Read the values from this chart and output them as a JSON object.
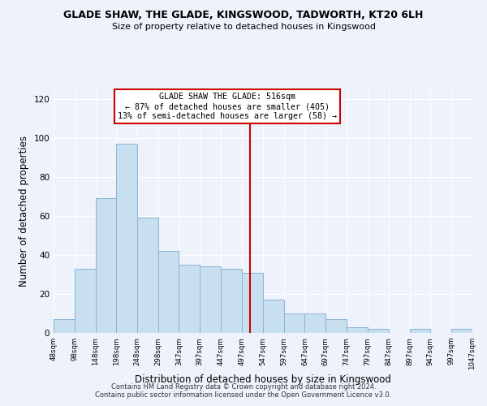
{
  "title": "GLADE SHAW, THE GLADE, KINGSWOOD, TADWORTH, KT20 6LH",
  "subtitle": "Size of property relative to detached houses in Kingswood",
  "xlabel": "Distribution of detached houses by size in Kingswood",
  "ylabel": "Number of detached properties",
  "bar_values": [
    7,
    33,
    69,
    97,
    59,
    42,
    35,
    34,
    33,
    31,
    17,
    10,
    10,
    7,
    3,
    2,
    0,
    2,
    0,
    2
  ],
  "bin_edges": [
    48,
    98,
    148,
    198,
    248,
    298,
    347,
    397,
    447,
    497,
    547,
    597,
    647,
    697,
    747,
    797,
    847,
    897,
    947,
    997,
    1047
  ],
  "tick_labels": [
    "48sqm",
    "98sqm",
    "148sqm",
    "198sqm",
    "248sqm",
    "298sqm",
    "347sqm",
    "397sqm",
    "447sqm",
    "497sqm",
    "547sqm",
    "597sqm",
    "647sqm",
    "697sqm",
    "747sqm",
    "797sqm",
    "847sqm",
    "897sqm",
    "947sqm",
    "997sqm",
    "1047sqm"
  ],
  "bar_color": "#c8dff0",
  "bar_edge_color": "#8ab4d4",
  "vline_x": 516,
  "vline_color": "#cc0000",
  "annotation_title": "GLADE SHAW THE GLADE: 516sqm",
  "annotation_line1": "← 87% of detached houses are smaller (405)",
  "annotation_line2": "13% of semi-detached houses are larger (58) →",
  "annotation_box_color": "#ffffff",
  "annotation_box_edge": "#cc0000",
  "ylim": [
    0,
    125
  ],
  "yticks": [
    0,
    20,
    40,
    60,
    80,
    100,
    120
  ],
  "footnote1": "Contains HM Land Registry data © Crown copyright and database right 2024.",
  "footnote2": "Contains public sector information licensed under the Open Government Licence v3.0.",
  "background_color": "#eef2fb"
}
